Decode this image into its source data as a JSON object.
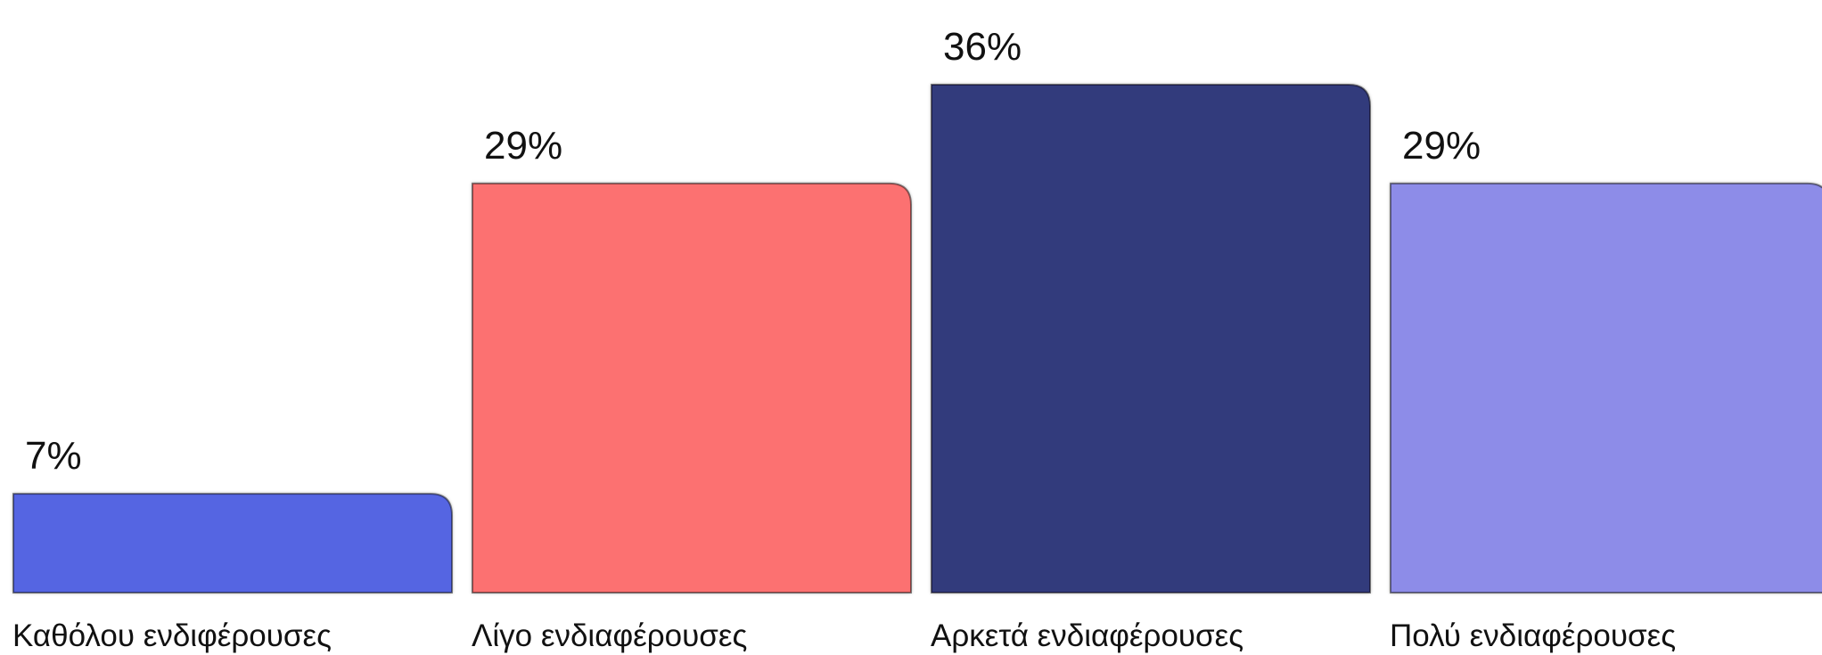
{
  "chart_data": {
    "type": "bar",
    "categories": [
      "Καθόλου ενδιφέρουσες",
      "Λίγο ενδιαφέρουσες",
      "Αρκετά ενδιαφέρουσες",
      "Πολύ ενδιαφέρουσες"
    ],
    "values": [
      7,
      29,
      36,
      29
    ],
    "value_labels": [
      "7%",
      "29%",
      "36%",
      "29%"
    ],
    "colors": [
      "#5565e2",
      "#fc7171",
      "#313a7c",
      "#8d8ce8"
    ],
    "title": "",
    "xlabel": "",
    "ylabel": "",
    "ylim": [
      0,
      36
    ],
    "grid": false
  }
}
